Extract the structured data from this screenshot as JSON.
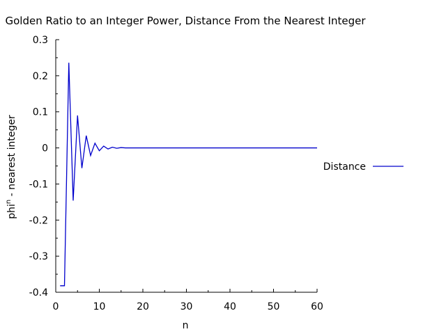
{
  "chart_data": {
    "type": "line",
    "title": "Golden Ratio to an Integer Power, Distance From the Nearest Integer",
    "xlabel": "n",
    "ylabel_base": "phi",
    "ylabel_sup": "n",
    "ylabel_rest": " - nearest integer",
    "xlim": [
      0,
      60
    ],
    "ylim": [
      -0.4,
      0.3
    ],
    "x_ticks": [
      0,
      10,
      20,
      30,
      40,
      50,
      60
    ],
    "y_ticks": [
      0.3,
      0.2,
      0.1,
      0,
      -0.1,
      -0.2,
      -0.3,
      -0.4
    ],
    "y_tick_labels": [
      "0.3",
      "0.2",
      "0.1",
      "0",
      "-0.1",
      "-0.2",
      "-0.3",
      "-0.4"
    ],
    "grid": false,
    "legend_position": "right",
    "series": [
      {
        "name": "Distance",
        "color": "#0000cc",
        "x": [
          1,
          2,
          3,
          4,
          5,
          6,
          7,
          8,
          9,
          10,
          11,
          12,
          13,
          14,
          15,
          16,
          17,
          18,
          19,
          20,
          25,
          30,
          40,
          50,
          60
        ],
        "y": [
          -0.382,
          -0.382,
          0.236,
          -0.146,
          0.09,
          -0.056,
          0.034,
          -0.021,
          0.013,
          -0.008,
          0.005,
          -0.003,
          0.002,
          -0.001,
          0.001,
          0.0,
          0.0,
          0.0,
          0.0,
          0.0,
          0.0,
          0.0,
          0.0,
          0.0,
          0.0
        ]
      }
    ]
  }
}
